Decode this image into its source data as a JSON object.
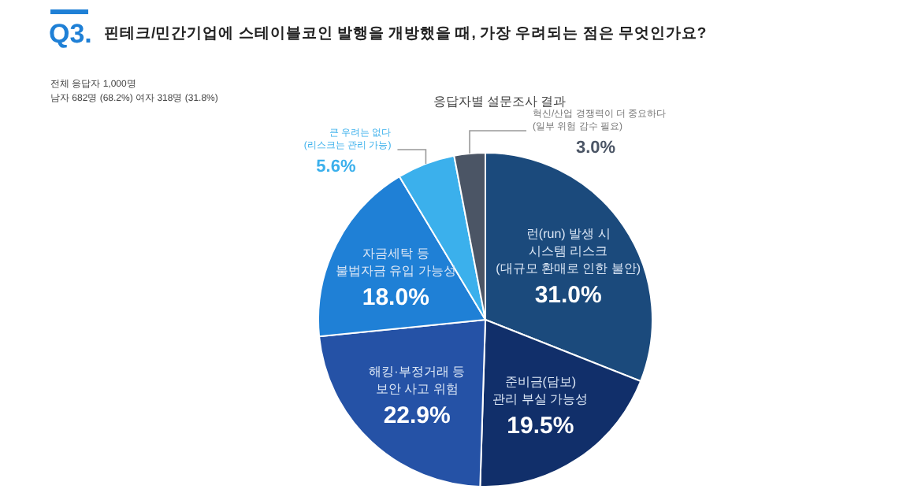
{
  "chart_data": {
    "type": "pie",
    "title": "핀테크/민간기업에 스테이블코인 발행을 개방했을 때, 가장 우려되는 점은 무엇인가요?",
    "subtitle": "응답자별 설문조사 결과",
    "annotations": [
      "Q3.",
      "전체 응답자 1,000명",
      "남자 682명 (68.2%) 여자 318명 (31.8%)"
    ],
    "categories": [
      "런(run) 발생 시\n시스템 리스크\n(대규모 환매로 인한 불안)",
      "준비금(담보)\n관리 부실 가능성",
      "해킹·부정거래 등\n보안 사고 위험",
      "자금세탁 등\n불법자금 유입 가능성",
      "큰 우려는 없다\n(리스크는 관리 가능)",
      "혁신/산업 경쟁력이 더 중요하다\n(일부 위험 감수 필요)"
    ],
    "values": [
      31.0,
      19.5,
      22.9,
      18.0,
      5.6,
      3.0
    ],
    "value_labels": [
      "31.0%",
      "19.5%",
      "22.9%",
      "18.0%",
      "5.6%",
      "3.0%"
    ],
    "colors": [
      "#1b4a7c",
      "#112f6a",
      "#2552a6",
      "#1f80d6",
      "#3bb0ec",
      "#4b5565"
    ]
  }
}
